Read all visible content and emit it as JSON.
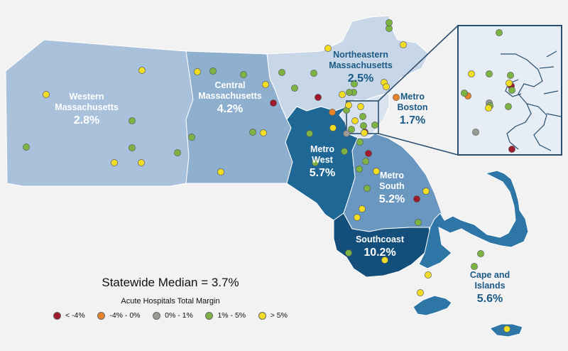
{
  "regions": [
    {
      "id": "western",
      "lines": [
        "Western",
        "Massachusetts"
      ],
      "value": "2.8%",
      "fill": "#a9c1da",
      "label_color": "#ffffff"
    },
    {
      "id": "central",
      "lines": [
        "Central",
        "Massachusetts"
      ],
      "value": "4.2%",
      "fill": "#8fafcf",
      "label_color": "#ffffff"
    },
    {
      "id": "northeastern",
      "lines": [
        "Northeastern",
        "Massachusetts"
      ],
      "value": "2.5%",
      "fill": "#c8d7e8",
      "label_color": "#1b5a86"
    },
    {
      "id": "metro-boston",
      "lines": [
        "Metro",
        "Boston"
      ],
      "value": "1.7%",
      "fill": "#d8e3ef",
      "label_color": "#1b5a86"
    },
    {
      "id": "metro-west",
      "lines": [
        "Metro",
        "West"
      ],
      "value": "5.7%",
      "fill": "#1f6896",
      "label_color": "#ffffff"
    },
    {
      "id": "metro-south",
      "lines": [
        "Metro",
        "South"
      ],
      "value": "5.2%",
      "fill": "#6a97c0",
      "label_color": "#ffffff"
    },
    {
      "id": "southcoast",
      "lines": [
        "Southcoast"
      ],
      "value": "10.2%",
      "fill": "#134f7a",
      "label_color": "#ffffff"
    },
    {
      "id": "cape-islands",
      "lines": [
        "Cape and",
        "Islands"
      ],
      "value": "5.6%",
      "fill": "#2e76a6",
      "label_color": "#1b5a86"
    }
  ],
  "legend": {
    "median_text": "Statewide Median = 3.7%",
    "title": "Acute Hospitals Total Margin",
    "categories": [
      {
        "key": "neg4",
        "label": "< -4%",
        "color": "#9e1b2d"
      },
      {
        "key": "neg4to0",
        "label": "-4% - 0%",
        "color": "#e8822a"
      },
      {
        "key": "zero1",
        "label": "0% - 1%",
        "color": "#9a9a96"
      },
      {
        "key": "one5",
        "label": "1% - 5%",
        "color": "#7cb342"
      },
      {
        "key": "gt5",
        "label": "> 5%",
        "color": "#f2dd24"
      }
    ]
  },
  "hospitals": [
    {
      "c": "gt5"
    },
    {
      "c": "gt5"
    },
    {
      "c": "one5"
    },
    {
      "c": "one5"
    },
    {
      "c": "gt5"
    },
    {
      "c": "one5"
    },
    {
      "c": "gt5"
    },
    {
      "c": "gt5"
    },
    {
      "c": "one5"
    },
    {
      "c": "one5"
    },
    {
      "c": "gt5"
    },
    {
      "c": "neg4"
    },
    {
      "c": "one5"
    },
    {
      "c": "gt5"
    },
    {
      "c": "one5"
    },
    {
      "c": "one5"
    },
    {
      "c": "gt5"
    },
    {
      "c": "one5"
    },
    {
      "c": "one5"
    },
    {
      "c": "one5"
    },
    {
      "c": "neg4"
    },
    {
      "c": "gt5"
    },
    {
      "c": "neg4to0"
    },
    {
      "c": "one5"
    },
    {
      "c": "one5"
    },
    {
      "c": "one5"
    },
    {
      "c": "gt5"
    },
    {
      "c": "one5"
    },
    {
      "c": "gt5"
    },
    {
      "c": "neg4to0"
    },
    {
      "c": "gt5"
    },
    {
      "c": "gt5"
    },
    {
      "c": "one5"
    },
    {
      "c": "one5"
    },
    {
      "c": "one5"
    },
    {
      "c": "gt5"
    },
    {
      "c": "neg4"
    },
    {
      "c": "one5"
    },
    {
      "c": "gt5"
    },
    {
      "c": "one5"
    },
    {
      "c": "one5"
    },
    {
      "c": "one5"
    },
    {
      "c": "neg4"
    },
    {
      "c": "gt5"
    },
    {
      "c": "zero1"
    },
    {
      "c": "one5"
    },
    {
      "c": "one5"
    },
    {
      "c": "gt5"
    },
    {
      "c": "one5"
    },
    {
      "c": "neg4"
    },
    {
      "c": "gt5"
    },
    {
      "c": "one5"
    },
    {
      "c": "gt5"
    },
    {
      "c": "gt5"
    },
    {
      "c": "one5"
    },
    {
      "c": "gt5"
    },
    {
      "c": "gt5"
    },
    {
      "c": "one5"
    },
    {
      "c": "one5"
    },
    {
      "c": "gt5"
    },
    {
      "c": "gt5"
    },
    {
      "c": "one5"
    },
    {
      "c": "gt5"
    },
    {
      "c": "gt5"
    },
    {
      "c": "one5"
    },
    {
      "c": "one5"
    }
  ],
  "inset_hospitals": [
    {
      "c": "one5"
    },
    {
      "c": "gt5"
    },
    {
      "c": "one5"
    },
    {
      "c": "one5"
    },
    {
      "c": "neg4"
    },
    {
      "c": "gt5"
    },
    {
      "c": "one5"
    },
    {
      "c": "neg4to0"
    },
    {
      "c": "one5"
    },
    {
      "c": "zero1"
    },
    {
      "c": "one5"
    },
    {
      "c": "gt5"
    },
    {
      "c": "one5"
    },
    {
      "c": "zero1"
    },
    {
      "c": "neg4"
    }
  ]
}
